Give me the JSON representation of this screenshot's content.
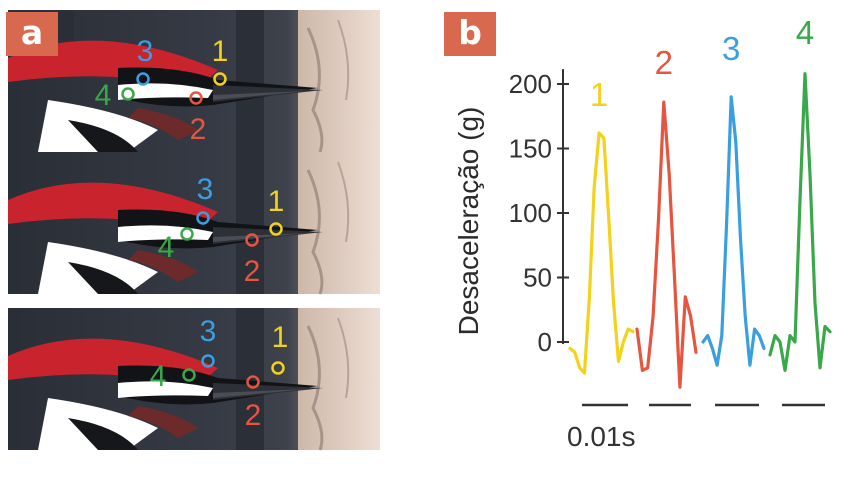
{
  "panel_a": {
    "label": "a",
    "photos": [
      {
        "markers": [
          {
            "id": "1",
            "color": "#f2d21b"
          },
          {
            "id": "2",
            "color": "#e5553f"
          },
          {
            "id": "3",
            "color": "#3a9fdf"
          },
          {
            "id": "4",
            "color": "#3aa84a"
          }
        ]
      },
      {
        "markers": [
          {
            "id": "1",
            "color": "#f2d21b"
          },
          {
            "id": "2",
            "color": "#e5553f"
          },
          {
            "id": "3",
            "color": "#3a9fdf"
          },
          {
            "id": "4",
            "color": "#3aa84a"
          }
        ]
      },
      {
        "markers": [
          {
            "id": "1",
            "color": "#f2d21b"
          },
          {
            "id": "2",
            "color": "#e5553f"
          },
          {
            "id": "3",
            "color": "#3a9fdf"
          },
          {
            "id": "4",
            "color": "#3aa84a"
          }
        ]
      }
    ]
  },
  "panel_b": {
    "label": "b",
    "scale_bar_label": "0.01s"
  },
  "chart_data": {
    "type": "line",
    "ylabel": "Desaceleração (g)",
    "ylim": [
      -20,
      210
    ],
    "yticks": [
      0,
      50,
      100,
      150,
      200
    ],
    "ytick_labels": [
      "0",
      "50",
      "100",
      "150",
      "200"
    ],
    "grid": false,
    "series": [
      {
        "name": "1",
        "color": "#f2d21b",
        "values": [
          -5,
          -8,
          -20,
          -24,
          35,
          120,
          162,
          158,
          95,
          30,
          -15,
          0,
          10,
          8
        ]
      },
      {
        "name": "2",
        "color": "#e5553f",
        "values": [
          10,
          -22,
          -20,
          20,
          95,
          186,
          130,
          50,
          -35,
          35,
          20,
          -8
        ]
      },
      {
        "name": "3",
        "color": "#3a9fdf",
        "values": [
          0,
          5,
          -5,
          -18,
          5,
          90,
          190,
          155,
          80,
          20,
          -18,
          10,
          5,
          -5
        ]
      },
      {
        "name": "4",
        "color": "#3aa84a",
        "values": [
          -10,
          5,
          0,
          -22,
          5,
          0,
          110,
          208,
          130,
          30,
          -20,
          12,
          8
        ]
      }
    ]
  }
}
